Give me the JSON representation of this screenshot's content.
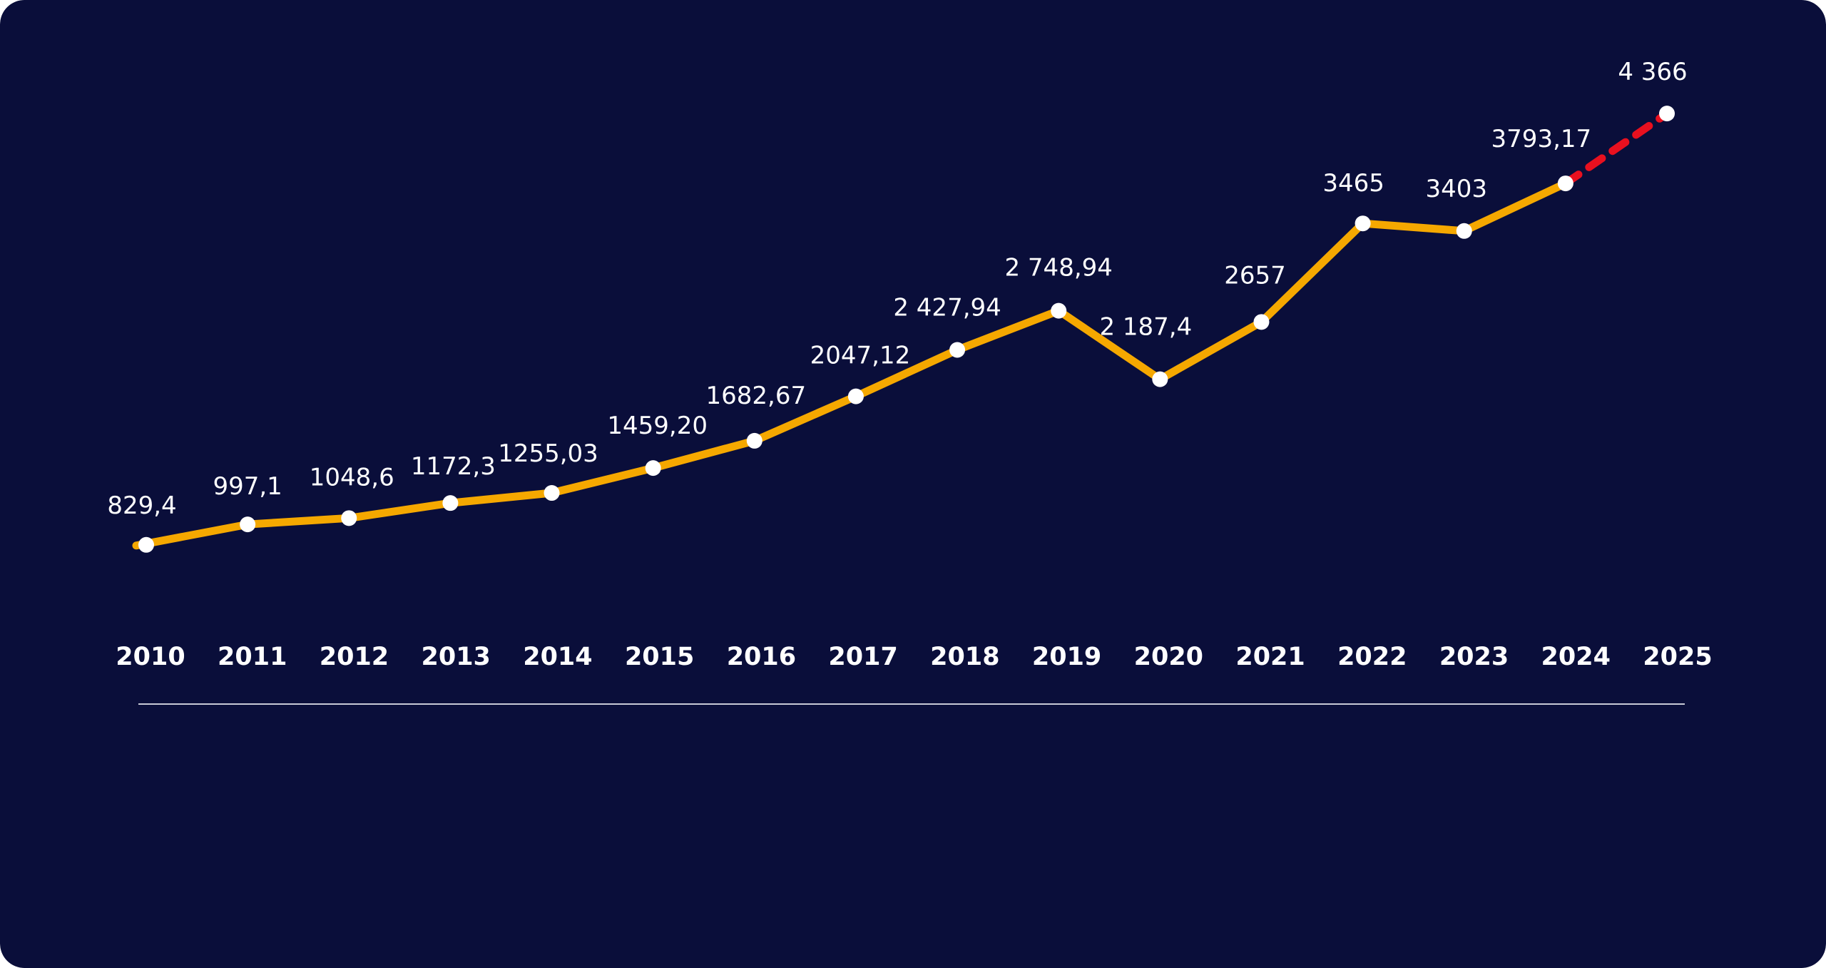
{
  "colors": {
    "background": "#0a0e3a",
    "line": "#f5a800",
    "forecast": "#e8101f",
    "point": "#ffffff",
    "baseline": "#c8cad6"
  },
  "chart_data": {
    "type": "line",
    "title": "",
    "xlabel": "",
    "ylabel": "",
    "grid": false,
    "categories": [
      "2010",
      "2011",
      "2012",
      "2013",
      "2014",
      "2015",
      "2016",
      "2017",
      "2018",
      "2019",
      "2020",
      "2021",
      "2022",
      "2023",
      "2024",
      "2025"
    ],
    "values": [
      829.4,
      997.1,
      1048.6,
      1172.3,
      1255.03,
      1459.2,
      1682.67,
      2047.12,
      2427.94,
      2748.94,
      2187.4,
      2657,
      3465,
      3403,
      3793.17,
      4366
    ],
    "data_labels": [
      "829,4",
      "997,1",
      "1048,6",
      "1172,3",
      "1255,03",
      "1459,20",
      "1682,67",
      "2047,12",
      "2 427,94",
      "2 748,94",
      "2 187,4",
      "2657",
      "3465",
      "3403",
      "3793,17",
      "4 366"
    ],
    "forecast_from_index": 14,
    "ylim": [
      0,
      5000
    ]
  }
}
